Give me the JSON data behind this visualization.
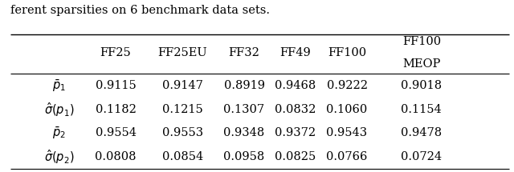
{
  "caption": "ferent sparsities on 6 benchmark data sets.",
  "col_headers": [
    "FF25",
    "FF25EU",
    "FF32",
    "FF49",
    "FF100",
    "FF100\nMEOP"
  ],
  "row_labels": [
    "$\\bar{p}_1$",
    "$\\hat{\\sigma}(p_1)$",
    "$\\bar{p}_2$",
    "$\\hat{\\sigma}(p_2)$"
  ],
  "data": [
    [
      "0.9115",
      "0.9147",
      "0.8919",
      "0.9468",
      "0.9222",
      "0.9018"
    ],
    [
      "0.1182",
      "0.1215",
      "0.1307",
      "0.0832",
      "0.1060",
      "0.1154"
    ],
    [
      "0.9554",
      "0.9553",
      "0.9348",
      "0.9372",
      "0.9543",
      "0.9478"
    ],
    [
      "0.0808",
      "0.0854",
      "0.0958",
      "0.0825",
      "0.0766",
      "0.0724"
    ]
  ]
}
